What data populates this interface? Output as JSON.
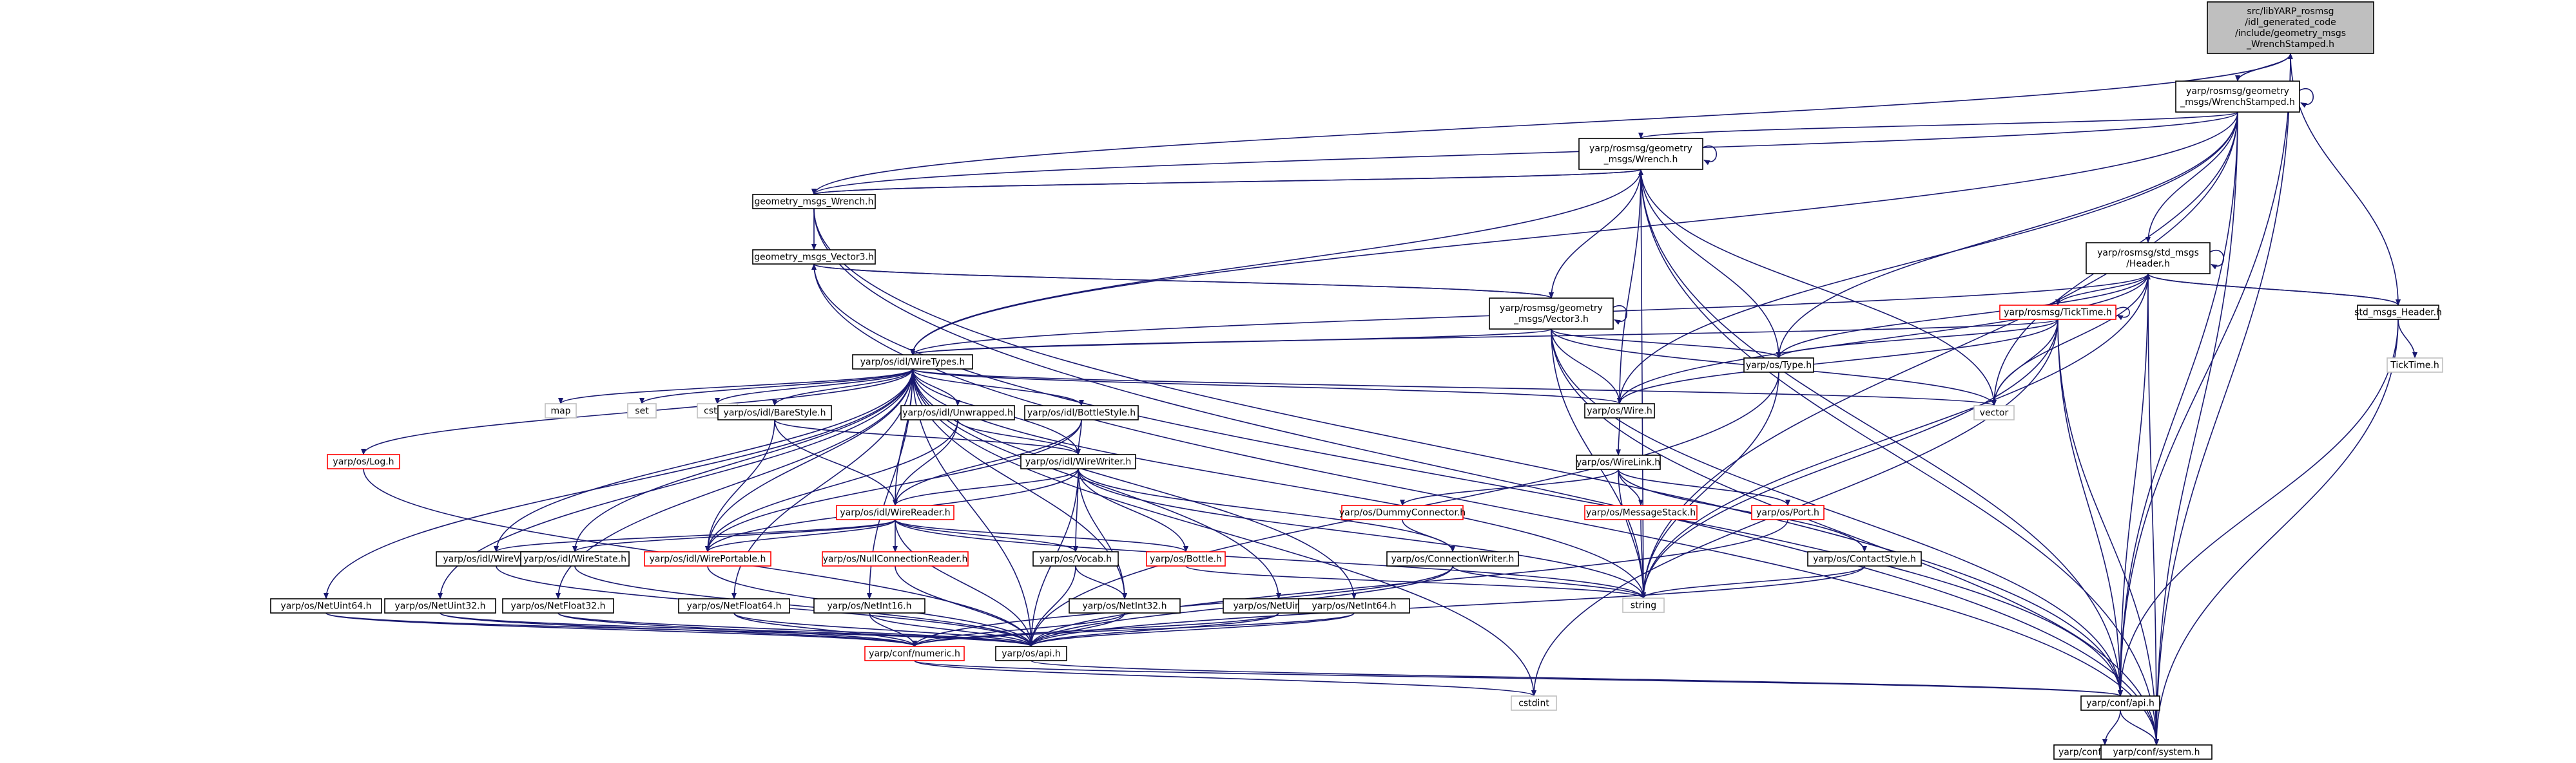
{
  "diagram": {
    "nodes": [
      {
        "id": "root",
        "lines": [
          "src/libYARP_rosmsg",
          "/idl_generated_code",
          "/include/geometry_msgs",
          "_WrenchStamped.h"
        ],
        "style": "root"
      },
      {
        "id": "ws",
        "lines": [
          "yarp/rosmsg/geometry",
          "_msgs/WrenchStamped.h"
        ],
        "style": "std"
      },
      {
        "id": "wr",
        "lines": [
          "yarp/rosmsg/geometry",
          "_msgs/Wrench.h"
        ],
        "style": "std"
      },
      {
        "id": "gmw",
        "lines": [
          "geometry_msgs_Wrench.h"
        ],
        "style": "std"
      },
      {
        "id": "gmv",
        "lines": [
          "geometry_msgs_Vector3.h"
        ],
        "style": "std"
      },
      {
        "id": "v3",
        "lines": [
          "yarp/rosmsg/geometry",
          "_msgs/Vector3.h"
        ],
        "style": "std"
      },
      {
        "id": "hdr",
        "lines": [
          "yarp/rosmsg/std_msgs",
          "/Header.h"
        ],
        "style": "std"
      },
      {
        "id": "smh",
        "lines": [
          "std_msgs_Header.h"
        ],
        "style": "std"
      },
      {
        "id": "tt",
        "lines": [
          "yarp/rosmsg/TickTime.h"
        ],
        "style": "red"
      },
      {
        "id": "ttf",
        "lines": [
          "TickTime.h"
        ],
        "style": "ext"
      },
      {
        "id": "wt",
        "lines": [
          "yarp/os/idl/WireTypes.h"
        ],
        "style": "std"
      },
      {
        "id": "type",
        "lines": [
          "yarp/os/Type.h"
        ],
        "style": "std"
      },
      {
        "id": "wire",
        "lines": [
          "yarp/os/Wire.h"
        ],
        "style": "std"
      },
      {
        "id": "vector",
        "lines": [
          "vector"
        ],
        "style": "ext"
      },
      {
        "id": "map",
        "lines": [
          "map"
        ],
        "style": "ext"
      },
      {
        "id": "set",
        "lines": [
          "set"
        ],
        "style": "ext"
      },
      {
        "id": "cstdio",
        "lines": [
          "cstdio"
        ],
        "style": "ext"
      },
      {
        "id": "bare",
        "lines": [
          "yarp/os/idl/BareStyle.h"
        ],
        "style": "std"
      },
      {
        "id": "unw",
        "lines": [
          "yarp/os/idl/Unwrapped.h"
        ],
        "style": "std"
      },
      {
        "id": "bsty",
        "lines": [
          "yarp/os/idl/BottleStyle.h"
        ],
        "style": "std"
      },
      {
        "id": "log",
        "lines": [
          "yarp/os/Log.h"
        ],
        "style": "red"
      },
      {
        "id": "ww",
        "lines": [
          "yarp/os/idl/WireWriter.h"
        ],
        "style": "std"
      },
      {
        "id": "wl",
        "lines": [
          "yarp/os/WireLink.h"
        ],
        "style": "std"
      },
      {
        "id": "wrd",
        "lines": [
          "yarp/os/idl/WireReader.h"
        ],
        "style": "red"
      },
      {
        "id": "dummy",
        "lines": [
          "yarp/os/DummyConnector.h"
        ],
        "style": "red"
      },
      {
        "id": "msgst",
        "lines": [
          "yarp/os/MessageStack.h"
        ],
        "style": "red"
      },
      {
        "id": "port",
        "lines": [
          "yarp/os/Port.h"
        ],
        "style": "red"
      },
      {
        "id": "wvoc",
        "lines": [
          "yarp/os/idl/WireVocab.h"
        ],
        "style": "std"
      },
      {
        "id": "wst",
        "lines": [
          "yarp/os/idl/WireState.h"
        ],
        "style": "std"
      },
      {
        "id": "wp",
        "lines": [
          "yarp/os/idl/WirePortable.h"
        ],
        "style": "red"
      },
      {
        "id": "ncr",
        "lines": [
          "yarp/os/NullConnectionReader.h"
        ],
        "style": "red"
      },
      {
        "id": "voc",
        "lines": [
          "yarp/os/Vocab.h"
        ],
        "style": "std"
      },
      {
        "id": "bottle",
        "lines": [
          "yarp/os/Bottle.h"
        ],
        "style": "red"
      },
      {
        "id": "cw",
        "lines": [
          "yarp/os/ConnectionWriter.h"
        ],
        "style": "std"
      },
      {
        "id": "cs",
        "lines": [
          "yarp/os/ContactStyle.h"
        ],
        "style": "std"
      },
      {
        "id": "string",
        "lines": [
          "string"
        ],
        "style": "ext"
      },
      {
        "id": "nu64",
        "lines": [
          "yarp/os/NetUint64.h"
        ],
        "style": "std"
      },
      {
        "id": "nu32",
        "lines": [
          "yarp/os/NetUint32.h"
        ],
        "style": "std"
      },
      {
        "id": "nf32",
        "lines": [
          "yarp/os/NetFloat32.h"
        ],
        "style": "std"
      },
      {
        "id": "nf64",
        "lines": [
          "yarp/os/NetFloat64.h"
        ],
        "style": "std"
      },
      {
        "id": "ni16",
        "lines": [
          "yarp/os/NetInt16.h"
        ],
        "style": "std"
      },
      {
        "id": "ni32",
        "lines": [
          "yarp/os/NetInt32.h"
        ],
        "style": "std"
      },
      {
        "id": "nui16",
        "lines": [
          "yarp/os/NetUint16.h"
        ],
        "style": "std"
      },
      {
        "id": "ni64",
        "lines": [
          "yarp/os/NetInt64.h"
        ],
        "style": "std"
      },
      {
        "id": "cnum",
        "lines": [
          "yarp/conf/numeric.h"
        ],
        "style": "red"
      },
      {
        "id": "osapi",
        "lines": [
          "yarp/os/api.h"
        ],
        "style": "std"
      },
      {
        "id": "cstdint",
        "lines": [
          "cstdint"
        ],
        "style": "ext"
      },
      {
        "id": "confapi",
        "lines": [
          "yarp/conf/api.h"
        ],
        "style": "std"
      },
      {
        "id": "compiler",
        "lines": [
          "yarp/conf/compiler.h"
        ],
        "style": "std"
      },
      {
        "id": "system",
        "lines": [
          "yarp/conf/system.h"
        ],
        "style": "std"
      }
    ],
    "edges": [
      [
        "root",
        "ws"
      ],
      [
        "root",
        "gmw"
      ],
      [
        "root",
        "smh"
      ],
      [
        "root",
        "confapi"
      ],
      [
        "root",
        "system"
      ],
      [
        "ws",
        "root"
      ],
      [
        "ws",
        "ws"
      ],
      [
        "ws",
        "wr"
      ],
      [
        "ws",
        "hdr"
      ],
      [
        "ws",
        "wt"
      ],
      [
        "ws",
        "type"
      ],
      [
        "ws",
        "wire"
      ],
      [
        "ws",
        "vector"
      ],
      [
        "ws",
        "string"
      ],
      [
        "ws",
        "confapi"
      ],
      [
        "ws",
        "system"
      ],
      [
        "ws",
        "gmw"
      ],
      [
        "wr",
        "wr"
      ],
      [
        "wr",
        "gmw"
      ],
      [
        "wr",
        "v3"
      ],
      [
        "wr",
        "wt"
      ],
      [
        "wr",
        "type"
      ],
      [
        "wr",
        "wire"
      ],
      [
        "wr",
        "vector"
      ],
      [
        "wr",
        "string"
      ],
      [
        "wr",
        "confapi"
      ],
      [
        "wr",
        "system"
      ],
      [
        "gmw",
        "wr"
      ],
      [
        "gmw",
        "gmv"
      ],
      [
        "gmw",
        "confapi"
      ],
      [
        "gmw",
        "system"
      ],
      [
        "gmv",
        "v3"
      ],
      [
        "gmv",
        "confapi"
      ],
      [
        "gmv",
        "system"
      ],
      [
        "v3",
        "v3"
      ],
      [
        "v3",
        "gmv"
      ],
      [
        "v3",
        "wt"
      ],
      [
        "v3",
        "type"
      ],
      [
        "v3",
        "wire"
      ],
      [
        "v3",
        "vector"
      ],
      [
        "v3",
        "string"
      ],
      [
        "v3",
        "confapi"
      ],
      [
        "v3",
        "system"
      ],
      [
        "hdr",
        "hdr"
      ],
      [
        "hdr",
        "tt"
      ],
      [
        "hdr",
        "smh"
      ],
      [
        "hdr",
        "wt"
      ],
      [
        "hdr",
        "type"
      ],
      [
        "hdr",
        "wire"
      ],
      [
        "hdr",
        "vector"
      ],
      [
        "hdr",
        "string"
      ],
      [
        "hdr",
        "confapi"
      ],
      [
        "hdr",
        "system"
      ],
      [
        "smh",
        "hdr"
      ],
      [
        "smh",
        "ttf"
      ],
      [
        "smh",
        "confapi"
      ],
      [
        "smh",
        "system"
      ],
      [
        "tt",
        "tt"
      ],
      [
        "tt",
        "wt"
      ],
      [
        "tt",
        "type"
      ],
      [
        "tt",
        "wire"
      ],
      [
        "tt",
        "vector"
      ],
      [
        "tt",
        "string"
      ],
      [
        "tt",
        "cstdint"
      ],
      [
        "tt",
        "confapi"
      ],
      [
        "tt",
        "system"
      ],
      [
        "wt",
        "map"
      ],
      [
        "wt",
        "set"
      ],
      [
        "wt",
        "cstdio"
      ],
      [
        "wt",
        "vector"
      ],
      [
        "wt",
        "string"
      ],
      [
        "wt",
        "wire"
      ],
      [
        "wt",
        "bare"
      ],
      [
        "wt",
        "unw"
      ],
      [
        "wt",
        "bsty"
      ],
      [
        "wt",
        "log"
      ],
      [
        "wt",
        "ww"
      ],
      [
        "wt",
        "wrd"
      ],
      [
        "wt",
        "wvoc"
      ],
      [
        "wt",
        "wst"
      ],
      [
        "wt",
        "wp"
      ],
      [
        "wt",
        "nu64"
      ],
      [
        "wt",
        "nu32"
      ],
      [
        "wt",
        "nf32"
      ],
      [
        "wt",
        "nf64"
      ],
      [
        "wt",
        "ni16"
      ],
      [
        "wt",
        "ni32"
      ],
      [
        "wt",
        "nui16"
      ],
      [
        "wt",
        "ni64"
      ],
      [
        "wt",
        "cstdint"
      ],
      [
        "wt",
        "osapi"
      ],
      [
        "type",
        "string"
      ],
      [
        "type",
        "osapi"
      ],
      [
        "wire",
        "wl"
      ],
      [
        "wl",
        "dummy"
      ],
      [
        "wl",
        "msgst"
      ],
      [
        "wl",
        "port"
      ],
      [
        "wl",
        "cs"
      ],
      [
        "wl",
        "string"
      ],
      [
        "bare",
        "ww"
      ],
      [
        "bare",
        "wrd"
      ],
      [
        "bare",
        "wp"
      ],
      [
        "unw",
        "ww"
      ],
      [
        "unw",
        "wrd"
      ],
      [
        "unw",
        "wp"
      ],
      [
        "bsty",
        "ww"
      ],
      [
        "bsty",
        "wrd"
      ],
      [
        "bsty",
        "wp"
      ],
      [
        "log",
        "osapi"
      ],
      [
        "ww",
        "wrd"
      ],
      [
        "ww",
        "wp"
      ],
      [
        "ww",
        "voc"
      ],
      [
        "ww",
        "bottle"
      ],
      [
        "ww",
        "cw"
      ],
      [
        "ww",
        "string"
      ],
      [
        "ww",
        "ni32"
      ],
      [
        "ww",
        "osapi"
      ],
      [
        "wrd",
        "wvoc"
      ],
      [
        "wrd",
        "wst"
      ],
      [
        "wrd",
        "wp"
      ],
      [
        "wrd",
        "ncr"
      ],
      [
        "wrd",
        "voc"
      ],
      [
        "wrd",
        "bottle"
      ],
      [
        "wrd",
        "string"
      ],
      [
        "wrd",
        "osapi"
      ],
      [
        "dummy",
        "cw"
      ],
      [
        "msgst",
        "string"
      ],
      [
        "port",
        "osapi"
      ],
      [
        "cs",
        "string"
      ],
      [
        "cs",
        "osapi"
      ],
      [
        "wp",
        "osapi"
      ],
      [
        "ncr",
        "osapi"
      ],
      [
        "voc",
        "ni32"
      ],
      [
        "voc",
        "osapi"
      ],
      [
        "bottle",
        "string"
      ],
      [
        "cw",
        "string"
      ],
      [
        "cw",
        "osapi"
      ],
      [
        "cw",
        "cnum"
      ],
      [
        "wvoc",
        "osapi"
      ],
      [
        "wst",
        "osapi"
      ],
      [
        "nu64",
        "cnum"
      ],
      [
        "nu64",
        "osapi"
      ],
      [
        "nu32",
        "cnum"
      ],
      [
        "nu32",
        "osapi"
      ],
      [
        "nf32",
        "cnum"
      ],
      [
        "nf32",
        "osapi"
      ],
      [
        "nf64",
        "cnum"
      ],
      [
        "nf64",
        "osapi"
      ],
      [
        "ni16",
        "cnum"
      ],
      [
        "ni16",
        "osapi"
      ],
      [
        "ni32",
        "cnum"
      ],
      [
        "ni32",
        "osapi"
      ],
      [
        "nui16",
        "cnum"
      ],
      [
        "nui16",
        "osapi"
      ],
      [
        "ni64",
        "cnum"
      ],
      [
        "ni64",
        "osapi"
      ],
      [
        "cnum",
        "confapi"
      ],
      [
        "cnum",
        "cstdint"
      ],
      [
        "osapi",
        "confapi"
      ],
      [
        "confapi",
        "compiler"
      ],
      [
        "confapi",
        "system"
      ]
    ],
    "colors": {
      "edge": "#191970",
      "root_fill": "#bfbfbf",
      "red_border": "#ff0000",
      "external_border": "#bfbfbf"
    }
  }
}
